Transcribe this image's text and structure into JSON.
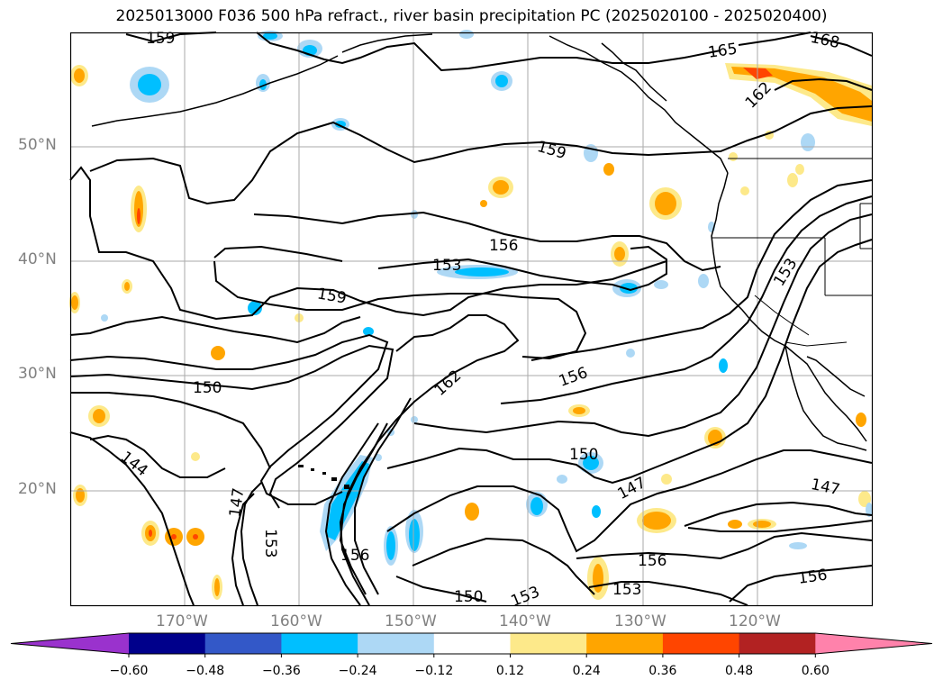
{
  "title": "2025013000 F036 500 hPa refract., river basin precipitation PC (2025020100 - 2025020400)",
  "lat_labels": [
    "50°N",
    "40°N",
    "30°N",
    "20°N"
  ],
  "lon_labels": [
    "170°W",
    "160°W",
    "150°W",
    "140°W",
    "130°W",
    "120°W"
  ],
  "contour_labels": [
    "159",
    "165",
    "168",
    "162",
    "159",
    "156",
    "153",
    "159",
    "150",
    "162",
    "156",
    "153",
    "150",
    "147",
    "144",
    "147",
    "153",
    "156",
    "147",
    "150",
    "153",
    "156",
    "153",
    "156"
  ],
  "colorbar": {
    "ticks": [
      "−0.60",
      "−0.48",
      "−0.36",
      "−0.24",
      "−0.12",
      "0.12",
      "0.24",
      "0.36",
      "0.48",
      "0.60"
    ],
    "colors": [
      "#9a32cd",
      "#00008b",
      "#3358c8",
      "#00bfff",
      "#add8f5",
      "#ffffff",
      "#fde98a",
      "#ffa500",
      "#ff4500",
      "#b22222",
      "#ff82ab"
    ]
  }
}
